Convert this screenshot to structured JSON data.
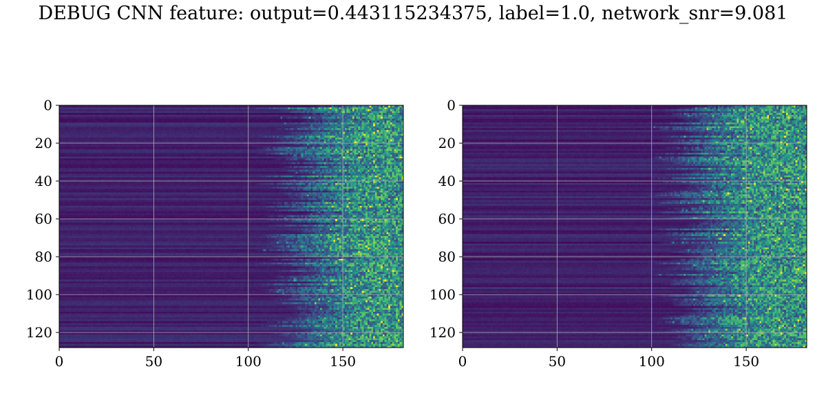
{
  "figure": {
    "title": "DEBUG CNN feature: output=0.443115234375, label=1.0, network_snr=9.081"
  },
  "chart_data": [
    {
      "type": "heatmap",
      "colormap": "viridis",
      "rows": 128,
      "cols": 182,
      "xlim": [
        0,
        182
      ],
      "ylim": [
        128,
        0
      ],
      "xticks": [
        0,
        50,
        100,
        150
      ],
      "yticks": [
        0,
        20,
        40,
        60,
        80,
        100,
        120
      ],
      "grid": true,
      "description_of_values": "low (dark purple) for x < ~110, rising noisy bright values for x > ~120"
    },
    {
      "type": "heatmap",
      "colormap": "viridis",
      "rows": 128,
      "cols": 182,
      "xlim": [
        0,
        182
      ],
      "ylim": [
        128,
        0
      ],
      "xticks": [
        0,
        50,
        100,
        150
      ],
      "yticks": [
        0,
        20,
        40,
        60,
        80,
        100,
        120
      ],
      "grid": true,
      "description_of_values": "low (dark purple) for x < ~110, rising noisy bright values for x > ~115"
    }
  ]
}
